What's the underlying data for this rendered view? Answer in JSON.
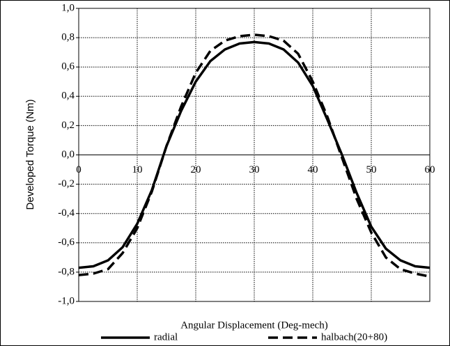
{
  "chart_data": {
    "type": "line",
    "x_label": "Angular Displacement (Deg-mech)",
    "y_label": "Developed Torque (Nm)",
    "x": [
      0,
      2.5,
      5,
      7.5,
      10,
      12.5,
      15,
      17.5,
      20,
      22.5,
      25,
      27.5,
      30,
      32.5,
      35,
      37.5,
      40,
      42.5,
      45,
      47.5,
      50,
      52.5,
      55,
      57.5,
      60
    ],
    "series": [
      {
        "name": "radial",
        "color": "#000000",
        "line_style": "solid",
        "values": [
          -0.77,
          -0.76,
          -0.72,
          -0.63,
          -0.47,
          -0.24,
          0.06,
          0.3,
          0.5,
          0.64,
          0.72,
          0.76,
          0.77,
          0.76,
          0.72,
          0.63,
          0.47,
          0.24,
          0.0,
          -0.26,
          -0.49,
          -0.64,
          -0.72,
          -0.76,
          -0.77
        ]
      },
      {
        "name": "halbach(20+80)",
        "color": "#000000",
        "line_style": "dashed",
        "values": [
          -0.82,
          -0.81,
          -0.78,
          -0.67,
          -0.5,
          -0.25,
          0.06,
          0.33,
          0.56,
          0.71,
          0.78,
          0.81,
          0.82,
          0.81,
          0.78,
          0.69,
          0.5,
          0.26,
          -0.02,
          -0.3,
          -0.53,
          -0.7,
          -0.78,
          -0.81,
          -0.83
        ]
      }
    ],
    "xlim": [
      0,
      60
    ],
    "xticks": [
      0,
      10,
      20,
      30,
      40,
      50,
      60
    ],
    "ylim": [
      -1,
      1
    ],
    "yticks": [
      {
        "value": -1,
        "label": "-1,0"
      },
      {
        "value": -0.8,
        "label": "-0,8"
      },
      {
        "value": -0.6,
        "label": "-0,6"
      },
      {
        "value": -0.4,
        "label": "-0,4"
      },
      {
        "value": -0.2,
        "label": "-0,2"
      },
      {
        "value": 0,
        "label": "0,0"
      },
      {
        "value": 0.2,
        "label": "0,2"
      },
      {
        "value": 0.4,
        "label": "0,4"
      },
      {
        "value": 0.6,
        "label": "0,6"
      },
      {
        "value": 0.8,
        "label": "0,8"
      },
      {
        "value": 1,
        "label": "1,0"
      }
    ],
    "grid": true,
    "legend": "bottom"
  }
}
